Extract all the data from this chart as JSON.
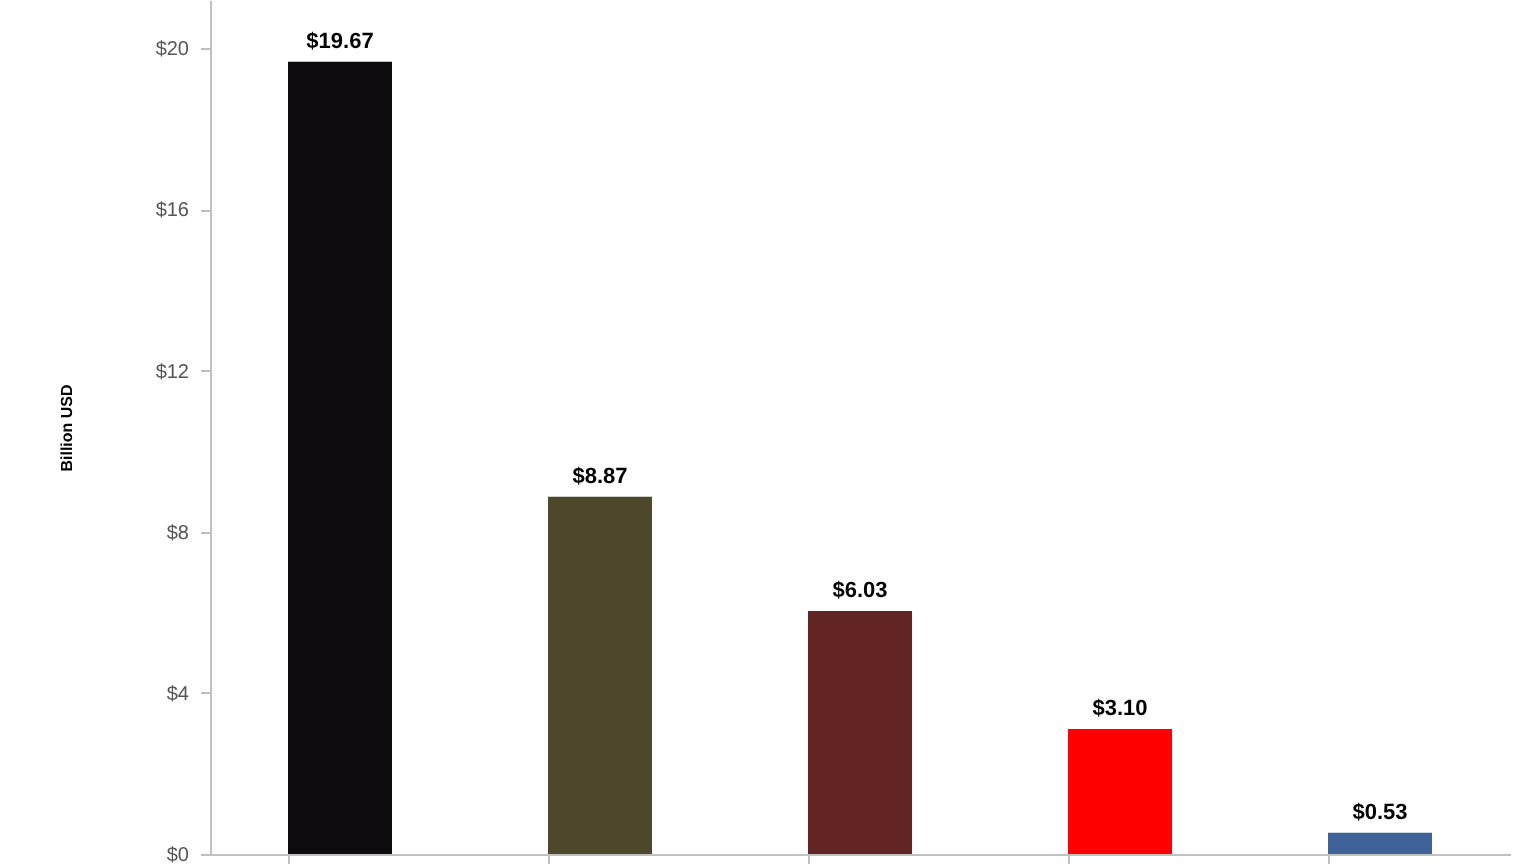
{
  "chart_data": {
    "type": "bar",
    "ylabel": "Billion USD",
    "categories": [
      null,
      null,
      null,
      null,
      null
    ],
    "values": [
      19.67,
      8.87,
      6.03,
      3.1,
      0.53
    ],
    "colors": [
      "#0d0b0d",
      "#4d482c",
      "#632424",
      "#ff0000",
      "#3f6399"
    ],
    "value_labels": [
      "$19.67",
      "$8.87",
      "$6.03",
      "$3.10",
      "$0.53"
    ],
    "ylim": [
      0,
      21.2
    ],
    "yticks": [
      {
        "value": 0,
        "label": "$0"
      },
      {
        "value": 4,
        "label": "$4"
      },
      {
        "value": 8,
        "label": "$8"
      },
      {
        "value": 12,
        "label": "$12"
      },
      {
        "value": 16,
        "label": "$16"
      },
      {
        "value": 20,
        "label": "$20"
      }
    ],
    "tick_labels": "y"
  }
}
